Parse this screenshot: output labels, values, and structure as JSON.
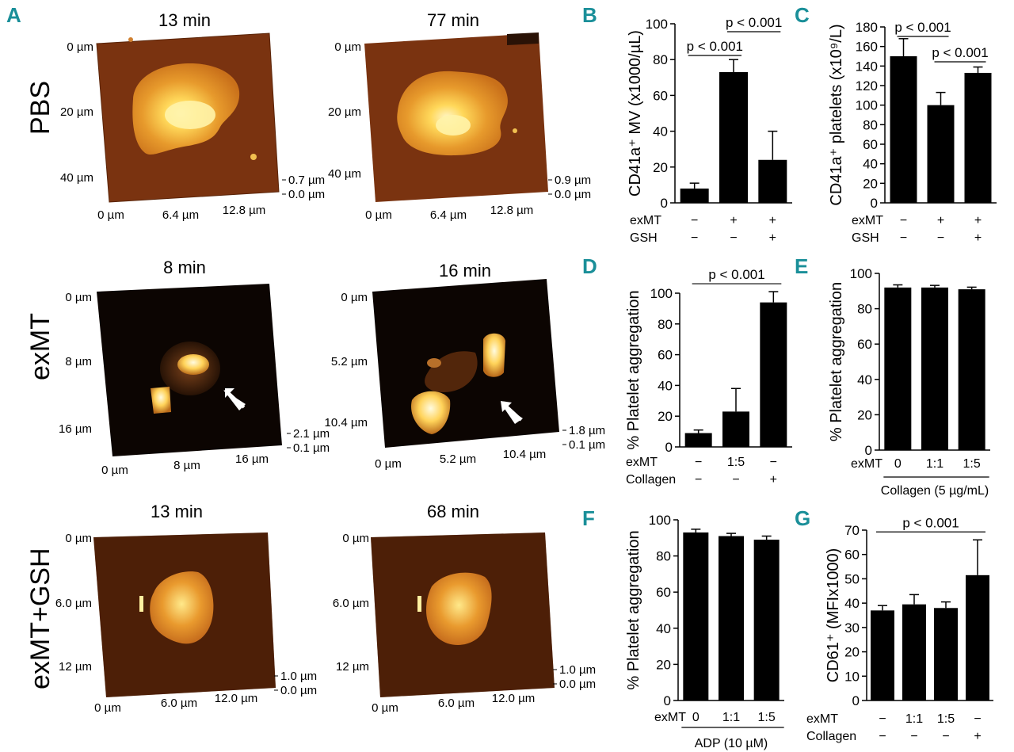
{
  "panel_labels": {
    "A": "A",
    "B": "B",
    "C": "C",
    "D": "D",
    "E": "E",
    "F": "F",
    "G": "G"
  },
  "afm": {
    "rows": [
      {
        "label": "PBS",
        "images": [
          {
            "title": "13 min",
            "y_ticks": [
              "0 µm",
              "20 µm",
              "40 µm"
            ],
            "x_ticks": [
              "0 µm",
              "6.4 µm",
              "12.8 µm"
            ],
            "z_ticks": [
              "0.7 µm",
              "0.0 µm"
            ]
          },
          {
            "title": "77 min",
            "y_ticks": [
              "0 µm",
              "20 µm",
              "40 µm"
            ],
            "x_ticks": [
              "0 µm",
              "6.4 µm",
              "12.8 µm"
            ],
            "z_ticks": [
              "0.9 µm",
              "0.0 µm"
            ]
          }
        ]
      },
      {
        "label": "exMT",
        "images": [
          {
            "title": "8 min",
            "y_ticks": [
              "0 µm",
              "8 µm",
              "16 µm"
            ],
            "x_ticks": [
              "0 µm",
              "8 µm",
              "16 µm"
            ],
            "z_ticks": [
              "2.1 µm",
              "0.1 µm"
            ]
          },
          {
            "title": "16 min",
            "y_ticks": [
              "0 µm",
              "5.2 µm",
              "10.4 µm"
            ],
            "x_ticks": [
              "0 µm",
              "5.2 µm",
              "10.4 µm"
            ],
            "z_ticks": [
              "1.8 µm",
              "0.1 µm"
            ]
          }
        ]
      },
      {
        "label": "exMT+GSH",
        "images": [
          {
            "title": "13 min",
            "y_ticks": [
              "0 µm",
              "6.0 µm",
              "12 µm"
            ],
            "x_ticks": [
              "0 µm",
              "6.0 µm",
              "12.0 µm"
            ],
            "z_ticks": [
              "1.0 µm",
              "0.0 µm"
            ]
          },
          {
            "title": "68 min",
            "y_ticks": [
              "0 µm",
              "6.0 µm",
              "12 µm"
            ],
            "x_ticks": [
              "0 µm",
              "6.0 µm",
              "12.0 µm"
            ],
            "z_ticks": [
              "1.0 µm",
              "0.0 µm"
            ]
          }
        ]
      }
    ]
  },
  "chart_data": [
    {
      "id": "B",
      "type": "bar",
      "ylabel": "CD41a⁺ MV (x1000/µL)",
      "ylim": [
        0,
        100
      ],
      "yticks": [
        0,
        20,
        40,
        60,
        80,
        100
      ],
      "values": [
        8,
        73,
        24
      ],
      "errors": [
        3,
        7,
        16
      ],
      "conditions": [
        {
          "name": "exMT",
          "levels": [
            "−",
            "+",
            "+"
          ]
        },
        {
          "name": "GSH",
          "levels": [
            "−",
            "−",
            "+"
          ]
        }
      ],
      "brackets": [
        {
          "from": 0,
          "to": 1,
          "label": "p < 0.001"
        },
        {
          "from": 1,
          "to": 2,
          "label": "p < 0.001"
        }
      ]
    },
    {
      "id": "C",
      "type": "bar",
      "ylabel": "CD41a⁺ platelets (x10⁹/L)",
      "ylim": [
        0,
        180
      ],
      "yticks": [
        0,
        20,
        40,
        60,
        80,
        100,
        120,
        140,
        160,
        180
      ],
      "values": [
        150,
        100,
        133
      ],
      "errors": [
        18,
        13,
        6
      ],
      "conditions": [
        {
          "name": "exMT",
          "levels": [
            "−",
            "+",
            "+"
          ]
        },
        {
          "name": "GSH",
          "levels": [
            "−",
            "−",
            "+"
          ]
        }
      ],
      "brackets": [
        {
          "from": 0,
          "to": 1,
          "label": "p < 0.001"
        },
        {
          "from": 1,
          "to": 2,
          "label": "p < 0.001"
        }
      ]
    },
    {
      "id": "D",
      "type": "bar",
      "ylabel": "% Platelet aggregation",
      "ylim": [
        0,
        100
      ],
      "yticks": [
        0,
        20,
        40,
        60,
        80,
        100
      ],
      "values": [
        9,
        23,
        94
      ],
      "errors": [
        2,
        15,
        7
      ],
      "conditions": [
        {
          "name": "exMT",
          "levels": [
            "−",
            "1:5",
            "−"
          ]
        },
        {
          "name": "Collagen",
          "levels": [
            "−",
            "−",
            "+"
          ]
        }
      ],
      "brackets": [
        {
          "from": 0,
          "to": 2,
          "label": "p < 0.001"
        }
      ]
    },
    {
      "id": "E",
      "type": "bar",
      "ylabel": "% Platelet aggregation",
      "ylim": [
        0,
        100
      ],
      "yticks": [
        0,
        20,
        40,
        60,
        80,
        100
      ],
      "values": [
        92,
        92,
        91
      ],
      "errors": [
        1.5,
        1.2,
        1.2
      ],
      "conditions": [
        {
          "name": "exMT",
          "levels": [
            "0",
            "1:1",
            "1:5"
          ]
        }
      ],
      "group_label": "Collagen (5 µg/mL)",
      "brackets": []
    },
    {
      "id": "F",
      "type": "bar",
      "ylabel": "% Platelet aggregation",
      "ylim": [
        0,
        100
      ],
      "yticks": [
        0,
        20,
        40,
        60,
        80,
        100
      ],
      "values": [
        93,
        91,
        89
      ],
      "errors": [
        1.8,
        1.5,
        2
      ],
      "conditions": [
        {
          "name": "exMT",
          "levels": [
            "0",
            "1:1",
            "1:5"
          ]
        }
      ],
      "group_label": "ADP (10 µM)",
      "brackets": []
    },
    {
      "id": "G",
      "type": "bar",
      "ylabel": "CD61⁺ (MFIx1000)",
      "ylim": [
        0,
        70
      ],
      "yticks": [
        0,
        10,
        20,
        30,
        40,
        50,
        60,
        70
      ],
      "values": [
        37,
        39.5,
        38,
        51.5
      ],
      "errors": [
        2,
        4,
        2.5,
        14.5
      ],
      "conditions": [
        {
          "name": "exMT",
          "levels": [
            "−",
            "1:1",
            "1:5",
            "−"
          ]
        },
        {
          "name": "Collagen",
          "levels": [
            "−",
            "−",
            "−",
            "+"
          ]
        }
      ],
      "brackets": [
        {
          "from": 0,
          "to": 3,
          "label": "p < 0.001"
        }
      ]
    }
  ]
}
